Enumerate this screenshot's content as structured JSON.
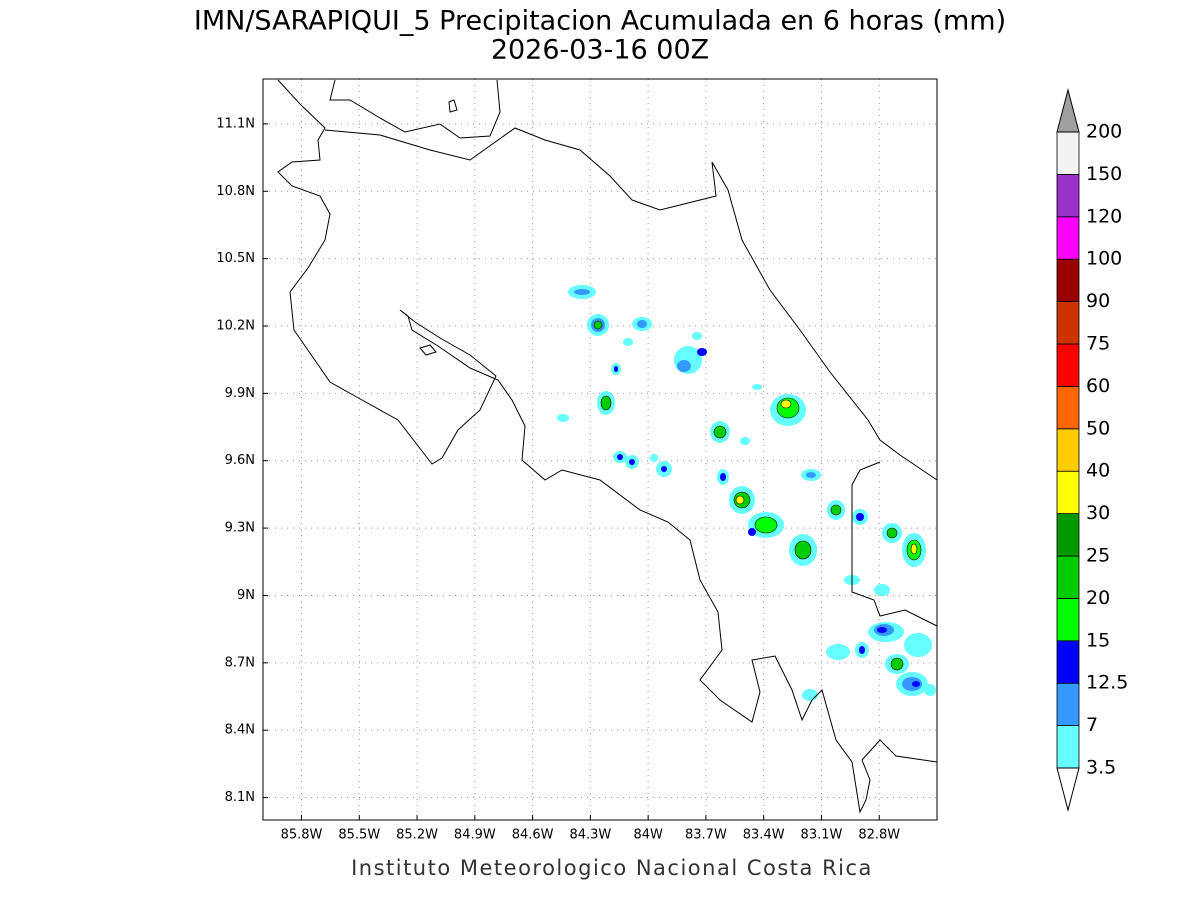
{
  "title": "IMN/SARAPIQUI_5 Precipitacion Acumulada en 6 horas (mm)",
  "subtitle": "2026-03-16 00Z",
  "map": {
    "lon_range": [
      -86.0,
      -82.5
    ],
    "lat_range": [
      8.0,
      11.3
    ],
    "lon_ticks": [
      {
        "value": -85.8,
        "label": "85.8W"
      },
      {
        "value": -85.5,
        "label": "85.5W"
      },
      {
        "value": -85.2,
        "label": "85.2W"
      },
      {
        "value": -84.9,
        "label": "84.9W"
      },
      {
        "value": -84.6,
        "label": "84.6W"
      },
      {
        "value": -84.3,
        "label": "84.3W"
      },
      {
        "value": -84,
        "label": "84W"
      },
      {
        "value": -83.7,
        "label": "83.7W"
      },
      {
        "value": -83.4,
        "label": "83.4W"
      },
      {
        "value": -83.1,
        "label": "83.1W"
      },
      {
        "value": -82.8,
        "label": "82.8W"
      }
    ],
    "lat_ticks": [
      {
        "value": 8.1,
        "label": "8.1N"
      },
      {
        "value": 8.4,
        "label": "8.4N"
      },
      {
        "value": 8.7,
        "label": "8.7N"
      },
      {
        "value": 9,
        "label": "9N"
      },
      {
        "value": 9.3,
        "label": "9.3N"
      },
      {
        "value": 9.6,
        "label": "9.6N"
      },
      {
        "value": 9.9,
        "label": "9.9N"
      },
      {
        "value": 10.2,
        "label": "10.2N"
      },
      {
        "value": 10.5,
        "label": "10.5N"
      },
      {
        "value": 10.8,
        "label": "10.8N"
      },
      {
        "value": 11.1,
        "label": "11.1N"
      }
    ],
    "grid": true
  },
  "colorbar": {
    "levels": [
      3.5,
      7,
      12.5,
      15,
      20,
      25,
      30,
      40,
      50,
      60,
      75,
      90,
      100,
      120,
      150,
      200
    ],
    "colors": [
      "#66ffff",
      "#3399ff",
      "#0000ff",
      "#00ff00",
      "#00cc00",
      "#009900",
      "#ffff00",
      "#ffcc00",
      "#ff6600",
      "#ff0000",
      "#cc3300",
      "#990000",
      "#ff00ff",
      "#9933cc",
      "#f2f2f2"
    ],
    "over_color": "#a0a0a0",
    "under_color": "#ffffff"
  },
  "footer": "Instituto Meteorologico Nacional Costa Rica"
}
